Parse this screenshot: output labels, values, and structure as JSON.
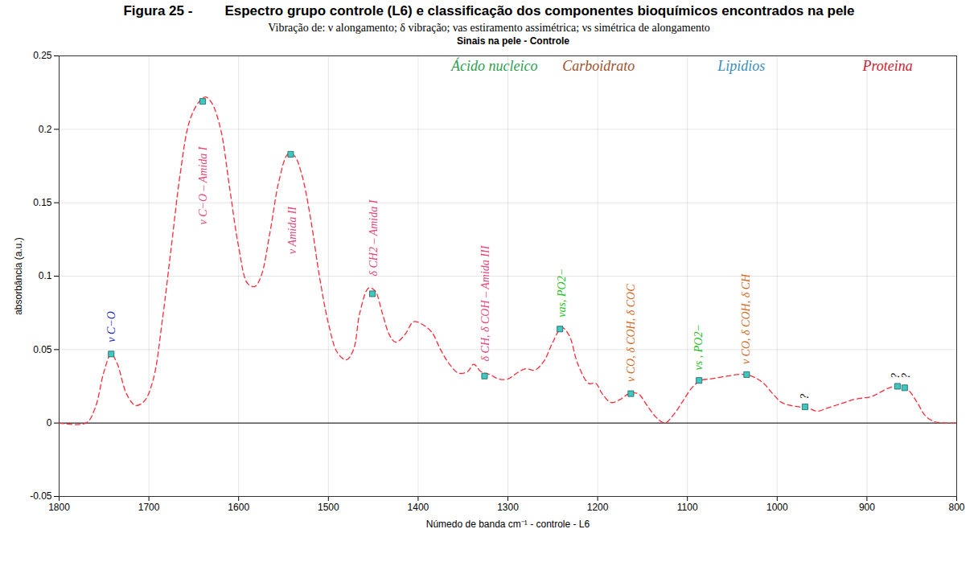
{
  "chart_data": {
    "type": "line",
    "figure_label": "Figura 25 -",
    "caption": "Espectro grupo controle (L6) e classificação dos componentes bioquímicos encontrados na pele",
    "subtitle": "Vibração de: ν alongamento; δ vibração; νas estiramento assimétrica; νs simétrica de alongamento",
    "title": "Sinais na pele - Controle",
    "xlabel": "Númedo de banda cm⁻¹ - controle - L6",
    "ylabel": "absorbância (a.u.)",
    "xlim": [
      1800,
      800
    ],
    "xticks": [
      1800,
      1700,
      1600,
      1500,
      1400,
      1300,
      1200,
      1100,
      1000,
      900,
      800
    ],
    "ylim": [
      -0.05,
      0.25
    ],
    "yticks": [
      -0.05,
      0,
      0.05,
      0.1,
      0.15,
      0.2,
      0.25
    ],
    "grid": true,
    "color": "#ff2a3a",
    "line_style": "dashed",
    "x": [
      1800,
      1770,
      1760,
      1750,
      1742,
      1735,
      1725,
      1715,
      1705,
      1695,
      1685,
      1675,
      1665,
      1655,
      1645,
      1637,
      1630,
      1620,
      1610,
      1600,
      1590,
      1582,
      1575,
      1565,
      1555,
      1545,
      1538,
      1530,
      1520,
      1510,
      1500,
      1490,
      1480,
      1472,
      1465,
      1455,
      1448,
      1440,
      1432,
      1425,
      1415,
      1405,
      1395,
      1385,
      1375,
      1365,
      1355,
      1345,
      1338,
      1330,
      1320,
      1310,
      1300,
      1290,
      1280,
      1270,
      1260,
      1250,
      1240,
      1232,
      1222,
      1210,
      1202,
      1195,
      1185,
      1175,
      1165,
      1155,
      1145,
      1135,
      1125,
      1115,
      1105,
      1095,
      1085,
      1075,
      1065,
      1055,
      1045,
      1035,
      1025,
      1015,
      1005,
      995,
      985,
      975,
      965,
      955,
      945,
      935,
      925,
      915,
      905,
      895,
      885,
      875,
      865,
      855,
      845,
      835,
      825,
      815,
      800
    ],
    "values": [
      0,
      0,
      0.01,
      0.035,
      0.047,
      0.04,
      0.02,
      0.012,
      0.015,
      0.03,
      0.07,
      0.12,
      0.17,
      0.205,
      0.218,
      0.222,
      0.218,
      0.2,
      0.16,
      0.12,
      0.095,
      0.093,
      0.1,
      0.13,
      0.165,
      0.183,
      0.182,
      0.17,
      0.14,
      0.1,
      0.068,
      0.048,
      0.043,
      0.05,
      0.075,
      0.092,
      0.09,
      0.075,
      0.06,
      0.055,
      0.06,
      0.069,
      0.067,
      0.062,
      0.05,
      0.04,
      0.034,
      0.035,
      0.04,
      0.035,
      0.033,
      0.03,
      0.03,
      0.034,
      0.037,
      0.036,
      0.042,
      0.055,
      0.065,
      0.06,
      0.04,
      0.027,
      0.027,
      0.02,
      0.014,
      0.016,
      0.02,
      0.02,
      0.012,
      0.004,
      0,
      0.006,
      0.015,
      0.024,
      0.029,
      0.03,
      0.031,
      0.032,
      0.033,
      0.033,
      0.031,
      0.027,
      0.02,
      0.014,
      0.012,
      0.011,
      0.01,
      0.008,
      0.01,
      0.012,
      0.014,
      0.016,
      0.017,
      0.018,
      0.021,
      0.024,
      0.025,
      0.023,
      0.015,
      0.005,
      0.001,
      0,
      0
    ],
    "markers": {
      "marker": "square",
      "color": "#3ec9c0",
      "x": [
        1742,
        1640,
        1542,
        1451,
        1326,
        1242,
        1163,
        1087,
        1034,
        969,
        866,
        858
      ],
      "y": [
        0.047,
        0.219,
        0.183,
        0.088,
        0.032,
        0.064,
        0.02,
        0.029,
        0.033,
        0.011,
        0.025,
        0.024
      ]
    },
    "annotations": [
      {
        "text": "ν C−O",
        "x": 1742,
        "y": 0.055,
        "color": "#1f1fcc"
      },
      {
        "text": "ν C−O – Amida I",
        "x": 1640,
        "y": 0.135,
        "color": "#e8457a"
      },
      {
        "text": "ν Amida II",
        "x": 1540,
        "y": 0.115,
        "color": "#e8457a"
      },
      {
        "text": "δ CH2 – Amida I",
        "x": 1450,
        "y": 0.1,
        "color": "#e8457a"
      },
      {
        "text": "δ CH, δ COH – Amida III",
        "x": 1325,
        "y": 0.042,
        "color": "#e8457a"
      },
      {
        "text": "νas, PO2−",
        "x": 1240,
        "y": 0.072,
        "color": "#22c022"
      },
      {
        "text": "ν CO, δ COH, δ COC",
        "x": 1163,
        "y": 0.028,
        "color": "#d2691e"
      },
      {
        "text": "νs , PO2−",
        "x": 1088,
        "y": 0.036,
        "color": "#22c022"
      },
      {
        "text": "ν CO, δ COH, δ CH",
        "x": 1035,
        "y": 0.04,
        "color": "#d2691e"
      },
      {
        "text": "?",
        "x": 969,
        "y": 0.016,
        "color": "#000000"
      },
      {
        "text": "?",
        "x": 868,
        "y": 0.03,
        "color": "#000000"
      },
      {
        "text": "?",
        "x": 856,
        "y": 0.03,
        "color": "#000000"
      }
    ],
    "group_labels": [
      {
        "text": "Ácido nucleico",
        "x": 1315,
        "y": 0.243,
        "color": "#2e9e4f"
      },
      {
        "text": "Carboidrato",
        "x": 1199,
        "y": 0.243,
        "color": "#a0522d"
      },
      {
        "text": "Lipidios",
        "x": 1040,
        "y": 0.243,
        "color": "#3a8fb7"
      },
      {
        "text": "Proteina",
        "x": 877,
        "y": 0.243,
        "color": "#cc2233"
      }
    ]
  }
}
